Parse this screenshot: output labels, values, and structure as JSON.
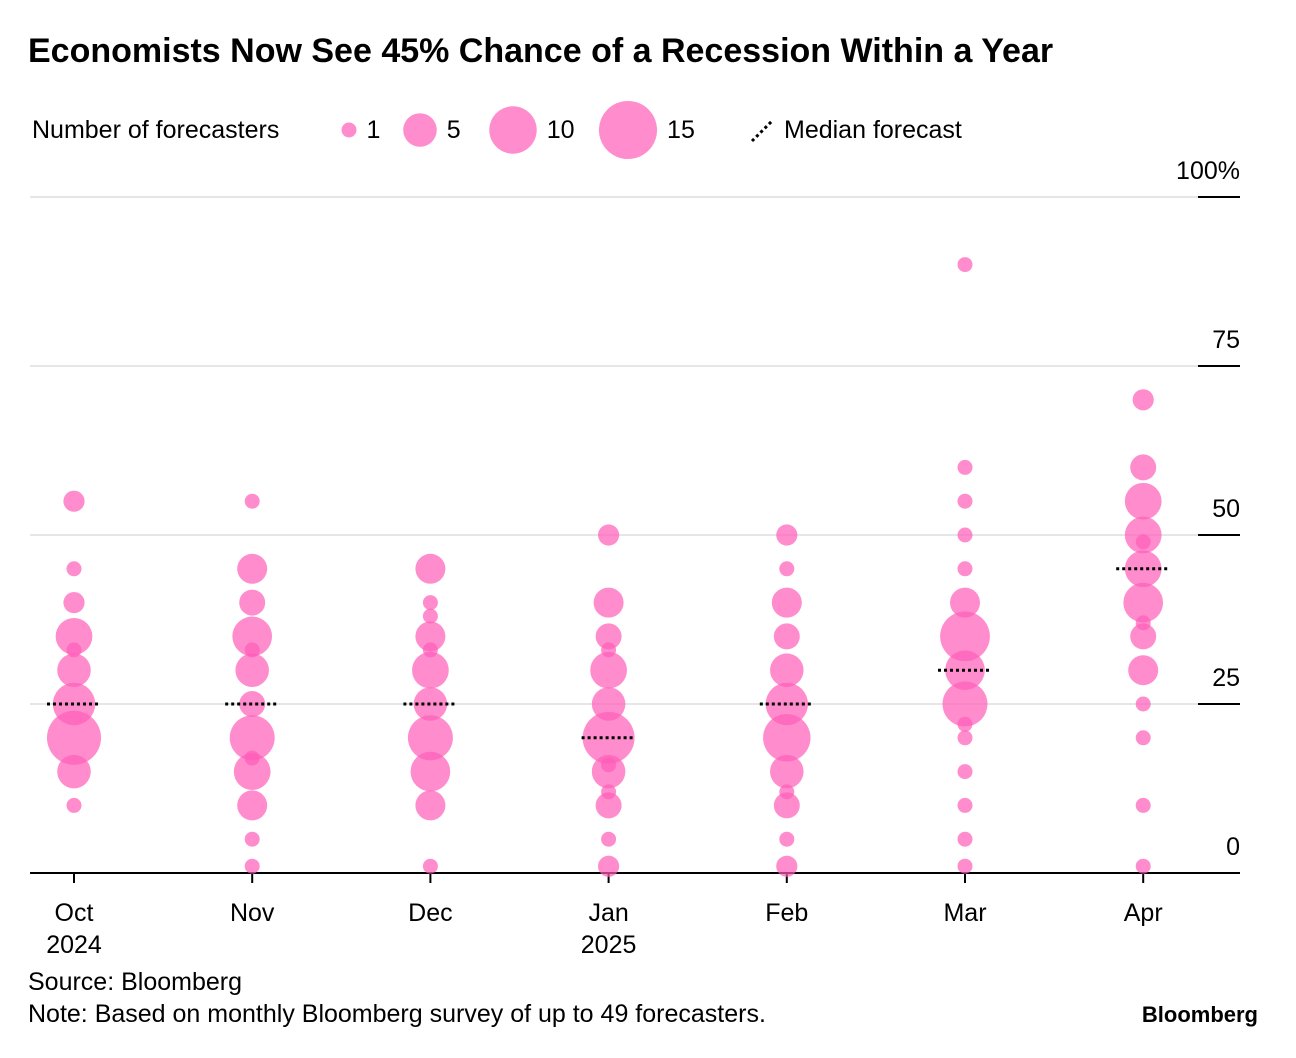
{
  "chart_data": {
    "type": "bubble-strip",
    "title": "Economists Now See 45% Chance of a Recession Within a Year",
    "size_legend": {
      "title": "Number of forecasters",
      "values": [
        1,
        5,
        10,
        15
      ]
    },
    "median_label": "Median forecast",
    "categories": [
      "Oct 2024",
      "Nov",
      "Dec",
      "Jan 2025",
      "Feb",
      "Mar",
      "Apr"
    ],
    "points": [
      {
        "values": [
          55,
          45,
          40,
          35,
          33,
          30,
          25,
          20,
          15,
          10
        ],
        "sizes": [
          2,
          1,
          2,
          6,
          1,
          5,
          8,
          13,
          5,
          1
        ]
      },
      {
        "values": [
          55,
          45,
          40,
          35,
          33,
          30,
          25,
          20,
          17,
          15,
          10,
          5,
          1
        ],
        "sizes": [
          1,
          4,
          3,
          7,
          1,
          5,
          3,
          9,
          1,
          6,
          4,
          1,
          1
        ]
      },
      {
        "values": [
          45,
          40,
          38,
          35,
          33,
          30,
          25,
          20,
          15,
          10,
          1
        ],
        "sizes": [
          4,
          1,
          1,
          4,
          1,
          6,
          5,
          9,
          7,
          4,
          1
        ]
      },
      {
        "values": [
          50,
          40,
          35,
          33,
          30,
          25,
          20,
          16,
          15,
          12,
          10,
          5,
          1
        ],
        "sizes": [
          2,
          4,
          3,
          1,
          6,
          5,
          12,
          1,
          5,
          1,
          3,
          1,
          2
        ]
      },
      {
        "values": [
          50,
          45,
          40,
          35,
          30,
          25,
          20,
          15,
          12,
          10,
          5,
          1
        ],
        "sizes": [
          2,
          1,
          4,
          3,
          5,
          8,
          10,
          5,
          1,
          3,
          1,
          2
        ]
      },
      {
        "values": [
          90,
          60,
          55,
          50,
          45,
          40,
          35,
          30,
          25,
          22,
          20,
          15,
          10,
          5,
          1
        ],
        "sizes": [
          1,
          1,
          1,
          1,
          1,
          4,
          11,
          7,
          9,
          1,
          1,
          1,
          1,
          1,
          1
        ]
      },
      {
        "values": [
          70,
          60,
          55,
          50,
          49,
          45,
          40,
          37,
          35,
          30,
          25,
          20,
          10,
          1
        ],
        "sizes": [
          2,
          3,
          6,
          6,
          1,
          6,
          7,
          1,
          3,
          4,
          1,
          1,
          1,
          1
        ]
      }
    ],
    "medians": [
      25,
      25,
      25,
      20,
      25,
      30,
      45
    ],
    "color": "#ff5cb8",
    "ylim": [
      0,
      100
    ],
    "yticks": [
      0,
      25,
      50,
      75,
      {
        "value": 100,
        "label": "100%"
      }
    ],
    "grid": true,
    "source": "Source: Bloomberg",
    "note": "Note: Based on monthly Bloomberg survey of up to 49 forecasters.",
    "brand": "Bloomberg"
  }
}
